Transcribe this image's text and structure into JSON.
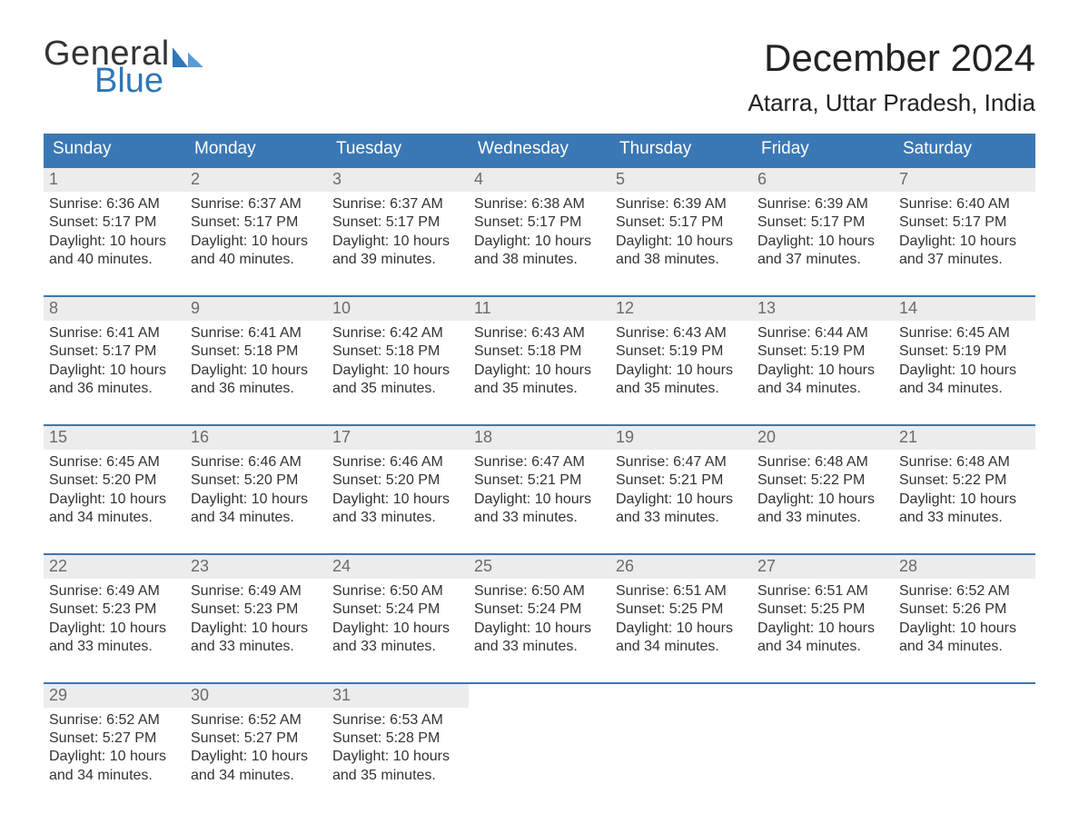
{
  "brand": {
    "word1": "General",
    "word2": "Blue"
  },
  "title": {
    "month": "December 2024",
    "location": "Atarra, Uttar Pradesh, India"
  },
  "colors": {
    "header_bg": "#3a78b5",
    "header_text": "#ffffff",
    "daynum_bg": "#ececec",
    "daynum_text": "#6b6b6b",
    "body_text": "#333333",
    "rule": "#3a78b5",
    "page_bg": "#ffffff",
    "brand_general": "#333333",
    "brand_blue": "#2e77b8"
  },
  "weekdays": [
    "Sunday",
    "Monday",
    "Tuesday",
    "Wednesday",
    "Thursday",
    "Friday",
    "Saturday"
  ],
  "weeks": [
    [
      {
        "n": "1",
        "sunrise": "Sunrise: 6:36 AM",
        "sunset": "Sunset: 5:17 PM",
        "daylight": "Daylight: 10 hours and 40 minutes."
      },
      {
        "n": "2",
        "sunrise": "Sunrise: 6:37 AM",
        "sunset": "Sunset: 5:17 PM",
        "daylight": "Daylight: 10 hours and 40 minutes."
      },
      {
        "n": "3",
        "sunrise": "Sunrise: 6:37 AM",
        "sunset": "Sunset: 5:17 PM",
        "daylight": "Daylight: 10 hours and 39 minutes."
      },
      {
        "n": "4",
        "sunrise": "Sunrise: 6:38 AM",
        "sunset": "Sunset: 5:17 PM",
        "daylight": "Daylight: 10 hours and 38 minutes."
      },
      {
        "n": "5",
        "sunrise": "Sunrise: 6:39 AM",
        "sunset": "Sunset: 5:17 PM",
        "daylight": "Daylight: 10 hours and 38 minutes."
      },
      {
        "n": "6",
        "sunrise": "Sunrise: 6:39 AM",
        "sunset": "Sunset: 5:17 PM",
        "daylight": "Daylight: 10 hours and 37 minutes."
      },
      {
        "n": "7",
        "sunrise": "Sunrise: 6:40 AM",
        "sunset": "Sunset: 5:17 PM",
        "daylight": "Daylight: 10 hours and 37 minutes."
      }
    ],
    [
      {
        "n": "8",
        "sunrise": "Sunrise: 6:41 AM",
        "sunset": "Sunset: 5:17 PM",
        "daylight": "Daylight: 10 hours and 36 minutes."
      },
      {
        "n": "9",
        "sunrise": "Sunrise: 6:41 AM",
        "sunset": "Sunset: 5:18 PM",
        "daylight": "Daylight: 10 hours and 36 minutes."
      },
      {
        "n": "10",
        "sunrise": "Sunrise: 6:42 AM",
        "sunset": "Sunset: 5:18 PM",
        "daylight": "Daylight: 10 hours and 35 minutes."
      },
      {
        "n": "11",
        "sunrise": "Sunrise: 6:43 AM",
        "sunset": "Sunset: 5:18 PM",
        "daylight": "Daylight: 10 hours and 35 minutes."
      },
      {
        "n": "12",
        "sunrise": "Sunrise: 6:43 AM",
        "sunset": "Sunset: 5:19 PM",
        "daylight": "Daylight: 10 hours and 35 minutes."
      },
      {
        "n": "13",
        "sunrise": "Sunrise: 6:44 AM",
        "sunset": "Sunset: 5:19 PM",
        "daylight": "Daylight: 10 hours and 34 minutes."
      },
      {
        "n": "14",
        "sunrise": "Sunrise: 6:45 AM",
        "sunset": "Sunset: 5:19 PM",
        "daylight": "Daylight: 10 hours and 34 minutes."
      }
    ],
    [
      {
        "n": "15",
        "sunrise": "Sunrise: 6:45 AM",
        "sunset": "Sunset: 5:20 PM",
        "daylight": "Daylight: 10 hours and 34 minutes."
      },
      {
        "n": "16",
        "sunrise": "Sunrise: 6:46 AM",
        "sunset": "Sunset: 5:20 PM",
        "daylight": "Daylight: 10 hours and 34 minutes."
      },
      {
        "n": "17",
        "sunrise": "Sunrise: 6:46 AM",
        "sunset": "Sunset: 5:20 PM",
        "daylight": "Daylight: 10 hours and 33 minutes."
      },
      {
        "n": "18",
        "sunrise": "Sunrise: 6:47 AM",
        "sunset": "Sunset: 5:21 PM",
        "daylight": "Daylight: 10 hours and 33 minutes."
      },
      {
        "n": "19",
        "sunrise": "Sunrise: 6:47 AM",
        "sunset": "Sunset: 5:21 PM",
        "daylight": "Daylight: 10 hours and 33 minutes."
      },
      {
        "n": "20",
        "sunrise": "Sunrise: 6:48 AM",
        "sunset": "Sunset: 5:22 PM",
        "daylight": "Daylight: 10 hours and 33 minutes."
      },
      {
        "n": "21",
        "sunrise": "Sunrise: 6:48 AM",
        "sunset": "Sunset: 5:22 PM",
        "daylight": "Daylight: 10 hours and 33 minutes."
      }
    ],
    [
      {
        "n": "22",
        "sunrise": "Sunrise: 6:49 AM",
        "sunset": "Sunset: 5:23 PM",
        "daylight": "Daylight: 10 hours and 33 minutes."
      },
      {
        "n": "23",
        "sunrise": "Sunrise: 6:49 AM",
        "sunset": "Sunset: 5:23 PM",
        "daylight": "Daylight: 10 hours and 33 minutes."
      },
      {
        "n": "24",
        "sunrise": "Sunrise: 6:50 AM",
        "sunset": "Sunset: 5:24 PM",
        "daylight": "Daylight: 10 hours and 33 minutes."
      },
      {
        "n": "25",
        "sunrise": "Sunrise: 6:50 AM",
        "sunset": "Sunset: 5:24 PM",
        "daylight": "Daylight: 10 hours and 33 minutes."
      },
      {
        "n": "26",
        "sunrise": "Sunrise: 6:51 AM",
        "sunset": "Sunset: 5:25 PM",
        "daylight": "Daylight: 10 hours and 34 minutes."
      },
      {
        "n": "27",
        "sunrise": "Sunrise: 6:51 AM",
        "sunset": "Sunset: 5:25 PM",
        "daylight": "Daylight: 10 hours and 34 minutes."
      },
      {
        "n": "28",
        "sunrise": "Sunrise: 6:52 AM",
        "sunset": "Sunset: 5:26 PM",
        "daylight": "Daylight: 10 hours and 34 minutes."
      }
    ],
    [
      {
        "n": "29",
        "sunrise": "Sunrise: 6:52 AM",
        "sunset": "Sunset: 5:27 PM",
        "daylight": "Daylight: 10 hours and 34 minutes."
      },
      {
        "n": "30",
        "sunrise": "Sunrise: 6:52 AM",
        "sunset": "Sunset: 5:27 PM",
        "daylight": "Daylight: 10 hours and 34 minutes."
      },
      {
        "n": "31",
        "sunrise": "Sunrise: 6:53 AM",
        "sunset": "Sunset: 5:28 PM",
        "daylight": "Daylight: 10 hours and 35 minutes."
      },
      null,
      null,
      null,
      null
    ]
  ]
}
